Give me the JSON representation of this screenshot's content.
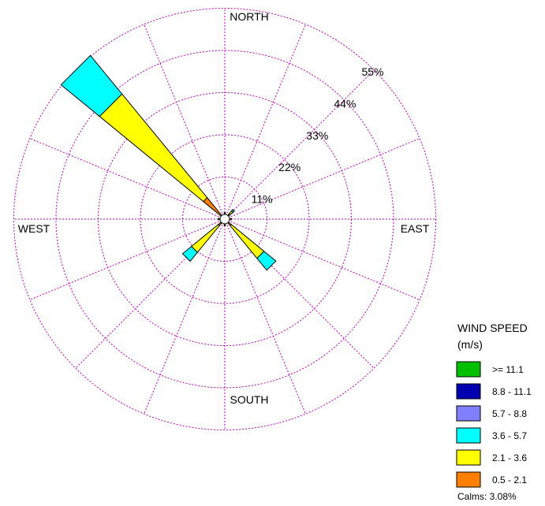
{
  "chart_data": {
    "type": "wind-rose",
    "direction_labels": {
      "north": "NORTH",
      "south": "SOUTH",
      "east": "EAST",
      "west": "WEST"
    },
    "rings": [
      "11%",
      "22%",
      "33%",
      "44%",
      "55%"
    ],
    "ring_values": [
      11,
      22,
      33,
      44,
      55
    ],
    "legend": {
      "title_line1": "WIND SPEED",
      "title_line2": "(m/s)",
      "items": [
        {
          "label": ">= 11.1",
          "color": "#00c000"
        },
        {
          "label": "8.8 -  11.1",
          "color": "#0000b0"
        },
        {
          "label": "5.7 -  8.8",
          "color": "#8080ff"
        },
        {
          "label": "3.6 -  5.7",
          "color": "#00ffff"
        },
        {
          "label": "2.1 -  3.6",
          "color": "#ffff00"
        },
        {
          "label": "0.5 -  2.1",
          "color": "#ff8000"
        }
      ]
    },
    "calms": "Calms: 3.08%",
    "colors": {
      "grid": "#c000c0",
      "calm_circle": "#ffffff"
    },
    "petals": [
      {
        "direction_deg": 315,
        "segments": [
          {
            "class": "0.5 - 2.1",
            "percent": 6
          },
          {
            "class": "2.1 - 3.6",
            "percent": 35
          },
          {
            "class": "3.6 - 5.7",
            "percent": 13
          }
        ]
      },
      {
        "direction_deg": 135,
        "segments": [
          {
            "class": "0.5 - 2.1",
            "percent": 1
          },
          {
            "class": "2.1 - 3.6",
            "percent": 11
          },
          {
            "class": "3.6 - 5.7",
            "percent": 4
          }
        ]
      },
      {
        "direction_deg": 225,
        "segments": [
          {
            "class": "0.5 - 2.1",
            "percent": 1
          },
          {
            "class": "2.1 - 3.6",
            "percent": 9
          },
          {
            "class": "3.6 - 5.7",
            "percent": 3
          }
        ]
      },
      {
        "direction_deg": 45,
        "segments": [
          {
            "class": "0.5 - 2.1",
            "percent": 0.5
          },
          {
            "class": "2.1 - 3.6",
            "percent": 1
          },
          {
            "class": "3.6 - 5.7",
            "percent": 0.5
          }
        ]
      },
      {
        "direction_deg": 0,
        "segments": [
          {
            "class": "0.5 - 2.1",
            "percent": 0.5
          }
        ]
      },
      {
        "direction_deg": 270,
        "segments": [
          {
            "class": "0.5 - 2.1",
            "percent": 0.5
          }
        ]
      },
      {
        "direction_deg": 180,
        "segments": [
          {
            "class": "0.5 - 2.1",
            "percent": 0.5
          }
        ]
      },
      {
        "direction_deg": 90,
        "segments": [
          {
            "class": "0.5 - 2.1",
            "percent": 0.5
          }
        ]
      }
    ]
  }
}
